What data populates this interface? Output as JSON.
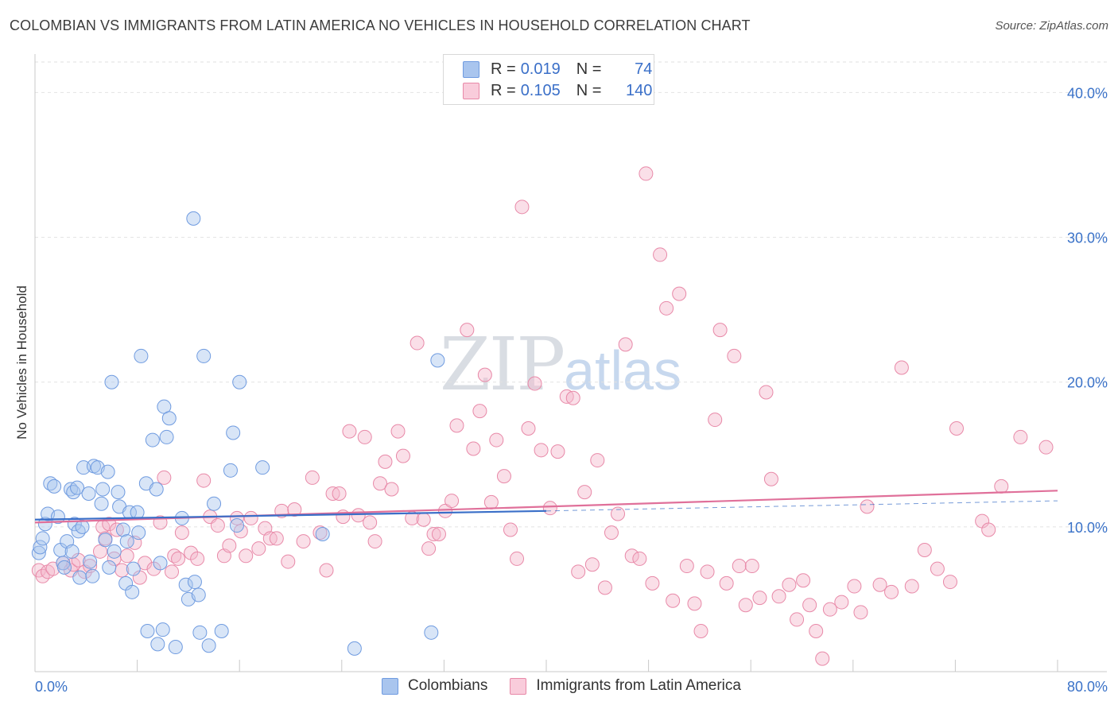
{
  "header": {
    "title": "COLOMBIAN VS IMMIGRANTS FROM LATIN AMERICA NO VEHICLES IN HOUSEHOLD CORRELATION CHART",
    "source": "Source: ZipAtlas.com"
  },
  "watermark": {
    "zip": "ZIP",
    "atlas": "atlas"
  },
  "legend": {
    "rows": [
      {
        "r_label": "R =",
        "r_value": "0.019",
        "n_label": "N =",
        "n_value": "74"
      },
      {
        "r_label": "R =",
        "r_value": "0.105",
        "n_label": "N =",
        "n_value": "140"
      }
    ]
  },
  "bottom_legend": {
    "series1": "Colombians",
    "series2": "Immigrants from Latin America"
  },
  "colors": {
    "blue_fill": "#a9c5ee",
    "blue_stroke": "#6f9be0",
    "blue_line": "#3a6fc8",
    "pink_fill": "#f5b9cc",
    "pink_stroke": "#e889a8",
    "pink_line": "#e0709a",
    "tick_text": "#3a72c8",
    "grid": "#e2e2e2"
  },
  "chart_data": {
    "type": "scatter",
    "title": "COLOMBIAN VS IMMIGRANTS FROM LATIN AMERICA NO VEHICLES IN HOUSEHOLD CORRELATION CHART",
    "xlabel": "",
    "ylabel": "No Vehicles in Household",
    "xlim": [
      0,
      80
    ],
    "ylim": [
      0,
      42
    ],
    "x_tick_labels": [
      "0.0%",
      "80.0%"
    ],
    "y_ticks": [
      10,
      20,
      30,
      40
    ],
    "y_tick_labels": [
      "10.0%",
      "20.0%",
      "30.0%",
      "40.0%"
    ],
    "grid": true,
    "series": [
      {
        "name": "Colombians",
        "color": "#a9c5ee",
        "r": 0.019,
        "n": 74,
        "trend": {
          "x": [
            0,
            40
          ],
          "y": [
            10.5,
            11.1
          ],
          "dashed_to": [
            80,
            11.8
          ]
        },
        "points": [
          [
            0.3,
            8.2
          ],
          [
            0.4,
            8.6
          ],
          [
            0.6,
            9.2
          ],
          [
            0.8,
            10.2
          ],
          [
            1.0,
            10.9
          ],
          [
            1.2,
            13.0
          ],
          [
            1.5,
            12.8
          ],
          [
            1.8,
            10.7
          ],
          [
            2.0,
            8.4
          ],
          [
            2.2,
            7.5
          ],
          [
            2.3,
            7.2
          ],
          [
            2.5,
            9.0
          ],
          [
            2.8,
            12.6
          ],
          [
            2.9,
            8.3
          ],
          [
            3.0,
            12.4
          ],
          [
            3.1,
            10.2
          ],
          [
            3.3,
            12.7
          ],
          [
            3.4,
            9.7
          ],
          [
            3.5,
            6.5
          ],
          [
            3.7,
            10.0
          ],
          [
            3.8,
            14.1
          ],
          [
            4.2,
            12.3
          ],
          [
            4.3,
            7.6
          ],
          [
            4.5,
            6.6
          ],
          [
            4.6,
            14.2
          ],
          [
            4.9,
            14.1
          ],
          [
            5.2,
            11.6
          ],
          [
            5.3,
            12.6
          ],
          [
            5.5,
            9.1
          ],
          [
            5.7,
            13.8
          ],
          [
            5.8,
            7.2
          ],
          [
            6.0,
            20.0
          ],
          [
            6.2,
            8.3
          ],
          [
            6.5,
            12.4
          ],
          [
            6.6,
            11.4
          ],
          [
            6.9,
            9.8
          ],
          [
            7.1,
            6.1
          ],
          [
            7.2,
            9.0
          ],
          [
            7.4,
            11.0
          ],
          [
            7.6,
            5.5
          ],
          [
            7.7,
            7.1
          ],
          [
            8.0,
            11.0
          ],
          [
            8.1,
            9.6
          ],
          [
            8.3,
            21.8
          ],
          [
            8.7,
            13.0
          ],
          [
            8.8,
            2.8
          ],
          [
            9.2,
            16.0
          ],
          [
            9.5,
            12.6
          ],
          [
            9.6,
            1.9
          ],
          [
            9.8,
            7.5
          ],
          [
            10.0,
            2.9
          ],
          [
            10.1,
            18.3
          ],
          [
            10.3,
            16.2
          ],
          [
            10.5,
            17.5
          ],
          [
            11.0,
            1.7
          ],
          [
            11.5,
            10.6
          ],
          [
            11.8,
            6.0
          ],
          [
            12.0,
            5.0
          ],
          [
            12.4,
            31.3
          ],
          [
            12.5,
            6.2
          ],
          [
            12.8,
            5.3
          ],
          [
            12.9,
            2.7
          ],
          [
            13.2,
            21.8
          ],
          [
            13.6,
            1.8
          ],
          [
            14.0,
            11.6
          ],
          [
            14.6,
            2.8
          ],
          [
            15.3,
            13.9
          ],
          [
            15.5,
            16.5
          ],
          [
            15.8,
            10.1
          ],
          [
            16.0,
            20.0
          ],
          [
            17.8,
            14.1
          ],
          [
            22.5,
            9.5
          ],
          [
            25.0,
            1.6
          ],
          [
            31.0,
            2.7
          ],
          [
            31.5,
            21.5
          ]
        ]
      },
      {
        "name": "Immigrants from Latin America",
        "color": "#f5b9cc",
        "r": 0.105,
        "n": 140,
        "trend": {
          "x": [
            0,
            80
          ],
          "y": [
            10.3,
            12.5
          ]
        },
        "points": [
          [
            0.3,
            7.0
          ],
          [
            0.6,
            6.6
          ],
          [
            1.0,
            6.9
          ],
          [
            1.4,
            7.1
          ],
          [
            2.2,
            7.5
          ],
          [
            2.8,
            7.0
          ],
          [
            3.0,
            7.4
          ],
          [
            3.4,
            7.7
          ],
          [
            3.9,
            6.9
          ],
          [
            4.3,
            7.3
          ],
          [
            5.1,
            8.3
          ],
          [
            5.3,
            10.0
          ],
          [
            5.5,
            9.2
          ],
          [
            5.8,
            10.2
          ],
          [
            6.2,
            7.8
          ],
          [
            6.4,
            9.8
          ],
          [
            6.8,
            7.0
          ],
          [
            7.2,
            8.0
          ],
          [
            7.8,
            8.9
          ],
          [
            8.2,
            6.5
          ],
          [
            8.6,
            7.5
          ],
          [
            9.3,
            7.1
          ],
          [
            9.8,
            10.3
          ],
          [
            10.1,
            13.4
          ],
          [
            10.7,
            6.9
          ],
          [
            10.9,
            8.0
          ],
          [
            11.2,
            7.8
          ],
          [
            11.5,
            9.6
          ],
          [
            12.2,
            8.2
          ],
          [
            12.7,
            7.8
          ],
          [
            13.2,
            13.2
          ],
          [
            13.7,
            10.7
          ],
          [
            14.3,
            10.1
          ],
          [
            14.8,
            8.0
          ],
          [
            15.2,
            8.7
          ],
          [
            15.8,
            10.6
          ],
          [
            16.1,
            9.7
          ],
          [
            16.5,
            8.0
          ],
          [
            16.9,
            10.6
          ],
          [
            17.5,
            8.5
          ],
          [
            18.0,
            9.9
          ],
          [
            18.4,
            9.2
          ],
          [
            18.9,
            9.2
          ],
          [
            19.3,
            11.1
          ],
          [
            19.8,
            7.6
          ],
          [
            20.3,
            11.2
          ],
          [
            21.0,
            9.0
          ],
          [
            21.7,
            13.4
          ],
          [
            22.3,
            9.6
          ],
          [
            22.8,
            7.0
          ],
          [
            23.3,
            12.3
          ],
          [
            23.8,
            12.3
          ],
          [
            24.1,
            10.7
          ],
          [
            24.6,
            16.6
          ],
          [
            25.3,
            10.8
          ],
          [
            25.8,
            16.2
          ],
          [
            26.2,
            10.3
          ],
          [
            26.6,
            9.0
          ],
          [
            27.0,
            13.0
          ],
          [
            27.4,
            14.5
          ],
          [
            27.9,
            12.6
          ],
          [
            28.4,
            16.6
          ],
          [
            28.8,
            14.9
          ],
          [
            29.5,
            10.6
          ],
          [
            29.9,
            22.7
          ],
          [
            30.4,
            10.5
          ],
          [
            30.8,
            8.5
          ],
          [
            31.2,
            9.5
          ],
          [
            31.6,
            9.5
          ],
          [
            32.1,
            11.1
          ],
          [
            32.6,
            11.8
          ],
          [
            33.0,
            17.0
          ],
          [
            33.8,
            23.6
          ],
          [
            34.3,
            15.4
          ],
          [
            34.8,
            18.0
          ],
          [
            35.2,
            20.5
          ],
          [
            35.7,
            11.7
          ],
          [
            36.1,
            16.0
          ],
          [
            36.7,
            13.5
          ],
          [
            37.2,
            9.8
          ],
          [
            37.7,
            7.8
          ],
          [
            38.1,
            32.1
          ],
          [
            38.6,
            16.8
          ],
          [
            39.1,
            19.9
          ],
          [
            39.6,
            15.3
          ],
          [
            40.3,
            11.3
          ],
          [
            40.9,
            15.2
          ],
          [
            41.6,
            19.0
          ],
          [
            42.1,
            18.9
          ],
          [
            42.5,
            6.9
          ],
          [
            43.0,
            12.4
          ],
          [
            43.6,
            7.4
          ],
          [
            44.0,
            14.6
          ],
          [
            44.6,
            5.8
          ],
          [
            45.1,
            9.6
          ],
          [
            45.6,
            10.9
          ],
          [
            46.2,
            22.6
          ],
          [
            46.7,
            8.0
          ],
          [
            47.3,
            7.8
          ],
          [
            47.8,
            34.4
          ],
          [
            48.3,
            6.1
          ],
          [
            48.9,
            28.8
          ],
          [
            49.4,
            25.1
          ],
          [
            49.9,
            4.9
          ],
          [
            50.4,
            26.1
          ],
          [
            51.0,
            7.3
          ],
          [
            51.6,
            4.7
          ],
          [
            52.1,
            2.8
          ],
          [
            52.6,
            6.9
          ],
          [
            53.2,
            17.4
          ],
          [
            53.6,
            23.6
          ],
          [
            54.1,
            6.1
          ],
          [
            54.7,
            21.8
          ],
          [
            55.1,
            7.3
          ],
          [
            55.6,
            4.6
          ],
          [
            56.1,
            7.3
          ],
          [
            56.7,
            5.1
          ],
          [
            57.2,
            19.3
          ],
          [
            57.6,
            13.3
          ],
          [
            58.2,
            5.2
          ],
          [
            59.0,
            6.0
          ],
          [
            59.6,
            3.6
          ],
          [
            60.1,
            6.3
          ],
          [
            60.6,
            4.6
          ],
          [
            61.1,
            2.8
          ],
          [
            61.6,
            0.9
          ],
          [
            62.2,
            4.3
          ],
          [
            63.1,
            4.8
          ],
          [
            64.1,
            5.9
          ],
          [
            64.6,
            4.1
          ],
          [
            65.1,
            11.4
          ],
          [
            66.1,
            6.0
          ],
          [
            67.0,
            5.5
          ],
          [
            67.8,
            21.0
          ],
          [
            68.6,
            5.9
          ],
          [
            69.6,
            8.4
          ],
          [
            70.6,
            7.1
          ],
          [
            71.6,
            6.2
          ],
          [
            72.1,
            16.8
          ],
          [
            74.1,
            10.4
          ],
          [
            74.6,
            9.8
          ],
          [
            75.6,
            12.8
          ],
          [
            77.1,
            16.2
          ],
          [
            79.1,
            15.5
          ]
        ]
      }
    ]
  }
}
